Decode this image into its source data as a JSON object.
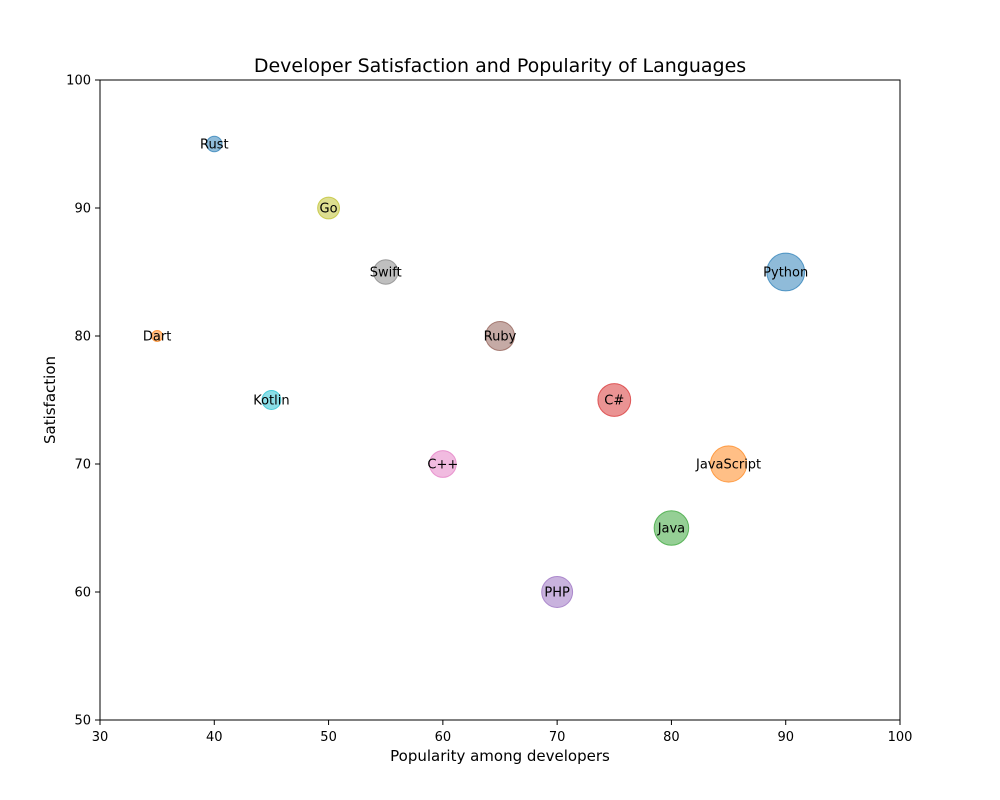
{
  "chart_data": {
    "type": "scatter",
    "title": "Developer Satisfaction and Popularity of Languages",
    "xlabel": "Popularity among developers",
    "ylabel": "Satisfaction",
    "xlim": [
      30,
      100
    ],
    "ylim": [
      50,
      100
    ],
    "xticks": [
      30,
      40,
      50,
      60,
      70,
      80,
      90,
      100
    ],
    "yticks": [
      50,
      60,
      70,
      80,
      90,
      100
    ],
    "grid": false,
    "points": [
      {
        "label": "Python",
        "x": 90,
        "y": 85,
        "color": "#1f77b4"
      },
      {
        "label": "JavaScript",
        "x": 85,
        "y": 70,
        "color": "#ff7f0e"
      },
      {
        "label": "Java",
        "x": 80,
        "y": 65,
        "color": "#2ca02c"
      },
      {
        "label": "C#",
        "x": 75,
        "y": 75,
        "color": "#d62728"
      },
      {
        "label": "PHP",
        "x": 70,
        "y": 60,
        "color": "#9467bd"
      },
      {
        "label": "Ruby",
        "x": 65,
        "y": 80,
        "color": "#8c564b"
      },
      {
        "label": "C++",
        "x": 60,
        "y": 70,
        "color": "#e377c2"
      },
      {
        "label": "Swift",
        "x": 55,
        "y": 85,
        "color": "#7f7f7f"
      },
      {
        "label": "Go",
        "x": 50,
        "y": 90,
        "color": "#bcbd22"
      },
      {
        "label": "Kotlin",
        "x": 45,
        "y": 75,
        "color": "#17becf"
      },
      {
        "label": "Rust",
        "x": 40,
        "y": 95,
        "color": "#1f77b4"
      },
      {
        "label": "Dart",
        "x": 35,
        "y": 80,
        "color": "#ff7f0e"
      }
    ]
  }
}
